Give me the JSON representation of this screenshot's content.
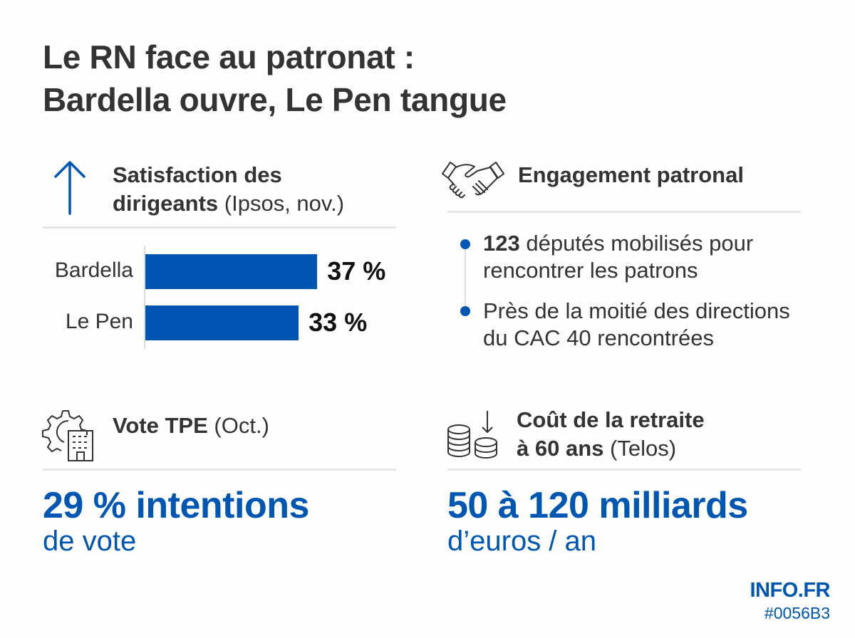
{
  "title": {
    "line1": "Le RN face au patronat :",
    "line2": "Bardella ouvre, Le Pen tangue"
  },
  "colors": {
    "accent": "#0056B3",
    "text": "#333333",
    "divider": "#E6E6E6"
  },
  "satisfaction": {
    "icon": "arrow-up-icon",
    "heading_line1": "Satisfaction des",
    "heading_bold": "dirigeants",
    "heading_note": "(Ipsos, nov.)"
  },
  "chart_data": {
    "type": "bar",
    "orientation": "horizontal",
    "categories": [
      "Bardella",
      "Le Pen"
    ],
    "values": [
      37,
      33
    ],
    "value_labels": [
      "37 %",
      "33 %"
    ],
    "unit": "%",
    "title": "Satisfaction des dirigeants (Ipsos, nov.)",
    "xlabel": "",
    "ylabel": "",
    "xlim": [
      0,
      100
    ],
    "grid": false,
    "color": "#0056B3"
  },
  "engagement": {
    "icon": "handshake-icon",
    "heading": "Engagement patronal",
    "bullets": [
      {
        "bold": "123",
        "text": " députés mobilisés pour",
        "text2": "rencontrer les patrons"
      },
      {
        "bold": "",
        "text": "Près de la moitié des directions",
        "text2": "du CAC 40 rencontrées"
      }
    ]
  },
  "vote": {
    "icon": "gear-building-icon",
    "heading_bold": "Vote TPE",
    "heading_note": "(Oct.)",
    "big": "29 % intentions",
    "sub": "de vote"
  },
  "retraite": {
    "icon": "coins-down-icon",
    "heading_line1": "Coût de la retraite",
    "heading_bold": "à 60 ans",
    "heading_note": "(Telos)",
    "big": "50 à 120 milliards",
    "sub": "d’euros / an"
  },
  "footer": {
    "brand": "INFO.FR",
    "color_code": "#0056B3"
  }
}
